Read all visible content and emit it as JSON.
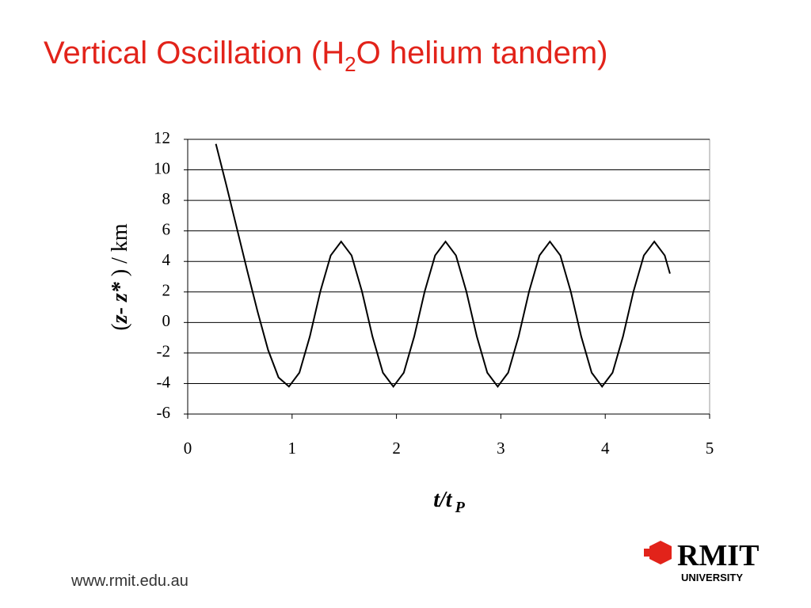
{
  "title": [
    "Vertical Oscillation (H",
    "2",
    "O helium tandem)"
  ],
  "footer": "www.rmit.edu.au",
  "logo": {
    "name": "RMIT",
    "sub": "UNIVERSITY"
  },
  "chart_data": {
    "type": "line",
    "y_label": [
      "(",
      "z",
      "- ",
      "z*",
      " ) / ",
      "km"
    ],
    "x_label": [
      "t/t",
      "P"
    ],
    "x": [
      0.27,
      0.37,
      0.47,
      0.57,
      0.67,
      0.77,
      0.87,
      0.97,
      1.07,
      1.17,
      1.27,
      1.37,
      1.47,
      1.57,
      1.67,
      1.77,
      1.87,
      1.97,
      2.07,
      2.17,
      2.27,
      2.37,
      2.47,
      2.57,
      2.67,
      2.77,
      2.87,
      2.97,
      3.07,
      3.17,
      3.27,
      3.37,
      3.47,
      3.57,
      3.67,
      3.77,
      3.87,
      3.97,
      4.07,
      4.17,
      4.27,
      4.37,
      4.47,
      4.57,
      4.62
    ],
    "values": [
      11.7,
      9.0,
      6.2,
      3.4,
      0.7,
      -1.8,
      -3.6,
      -4.2,
      -3.29,
      -0.92,
      2.02,
      4.39,
      5.3,
      4.39,
      2.02,
      -0.92,
      -3.29,
      -4.2,
      -3.29,
      -0.92,
      2.02,
      4.39,
      5.3,
      4.39,
      2.02,
      -0.92,
      -3.29,
      -4.2,
      -3.29,
      -0.92,
      2.02,
      4.39,
      5.3,
      4.39,
      2.02,
      -0.92,
      -3.29,
      -4.2,
      -3.29,
      -0.92,
      2.02,
      4.39,
      5.3,
      4.39,
      3.2
    ],
    "color": "#000000",
    "xlim": [
      0,
      5
    ],
    "xticks": [
      0,
      1,
      2,
      3,
      4,
      5
    ],
    "ylim": [
      -6,
      12
    ],
    "yticks": [
      -6,
      -4,
      -2,
      0,
      2,
      4,
      6,
      8,
      10,
      12
    ],
    "grid": true
  }
}
